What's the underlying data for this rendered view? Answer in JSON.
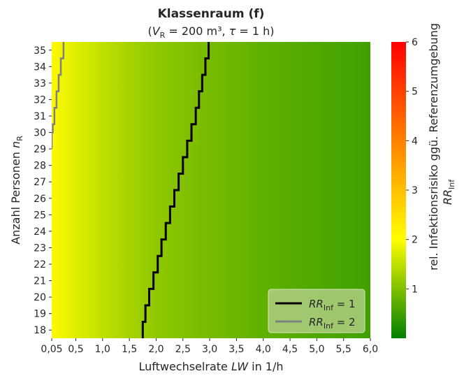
{
  "chart_data": {
    "type": "heatmap",
    "title": "Klassenraum (f)",
    "subtitle": {
      "open": "(",
      "v_sym": "V",
      "v_sub": "R",
      "v_val": " = 200 m³, ",
      "tau_sym": "τ",
      "tau_val": " = 1 h)"
    },
    "xlabel": {
      "prefix": "Luftwechselrate ",
      "symbol": "LW",
      "suffix": " in 1/h"
    },
    "ylabel": {
      "prefix": "Anzahl Personen ",
      "symbol": "n",
      "sub": "R"
    },
    "x_range": [
      0.05,
      6.0
    ],
    "y_range": [
      18,
      35
    ],
    "x_ticks": [
      {
        "value": 0.05,
        "label": "0,05"
      },
      {
        "value": 0.5,
        "label": "0,5"
      },
      {
        "value": 1.0,
        "label": "1,0"
      },
      {
        "value": 1.5,
        "label": "1,5"
      },
      {
        "value": 2.0,
        "label": "2,0"
      },
      {
        "value": 2.5,
        "label": "2,5"
      },
      {
        "value": 3.0,
        "label": "3,0"
      },
      {
        "value": 3.5,
        "label": "3,5"
      },
      {
        "value": 4.0,
        "label": "4,0"
      },
      {
        "value": 4.5,
        "label": "4,5"
      },
      {
        "value": 5.0,
        "label": "5,0"
      },
      {
        "value": 5.5,
        "label": "5,5"
      },
      {
        "value": 6.0,
        "label": "6,0"
      }
    ],
    "y_ticks": [
      18,
      19,
      20,
      21,
      22,
      23,
      24,
      25,
      26,
      27,
      28,
      29,
      30,
      31,
      32,
      33,
      34,
      35
    ],
    "colorbar": {
      "label_line1": "rel. Infektionsrisiko ggü. Referenzumgebung",
      "label_sym": "RR",
      "label_sub": "Inf",
      "range": [
        0,
        6
      ],
      "ticks": [
        1,
        2,
        3,
        4,
        5,
        6
      ],
      "stops": [
        {
          "value": 0.0,
          "color": "#008000"
        },
        {
          "value": 1.0,
          "color": "#80c000"
        },
        {
          "value": 2.0,
          "color": "#ffff00"
        },
        {
          "value": 4.0,
          "color": "#ff8000"
        },
        {
          "value": 6.0,
          "color": "#ff0000"
        }
      ]
    },
    "field": {
      "at_x": [
        0.05,
        0.5,
        1.0,
        1.5,
        2.0,
        3.0,
        4.0,
        5.0,
        6.0
      ],
      "rr_at_x": [
        2.1,
        1.75,
        1.5,
        1.3,
        1.12,
        0.92,
        0.75,
        0.62,
        0.5
      ]
    },
    "series": [
      {
        "name": "RR_Inf = 1",
        "legend_sym": "RR",
        "legend_sub": "Inf",
        "legend_val": " = 1",
        "color": "#000000",
        "points": [
          [
            1.75,
            18
          ],
          [
            1.8,
            19
          ],
          [
            1.87,
            20
          ],
          [
            1.95,
            21
          ],
          [
            2.03,
            22
          ],
          [
            2.1,
            23
          ],
          [
            2.18,
            24
          ],
          [
            2.26,
            25
          ],
          [
            2.34,
            26
          ],
          [
            2.42,
            27
          ],
          [
            2.5,
            28
          ],
          [
            2.58,
            29
          ],
          [
            2.66,
            30
          ],
          [
            2.74,
            31
          ],
          [
            2.8,
            32
          ],
          [
            2.86,
            33
          ],
          [
            2.92,
            34
          ],
          [
            2.98,
            35
          ]
        ]
      },
      {
        "name": "RR_Inf = 2",
        "legend_sym": "RR",
        "legend_sub": "Inf",
        "legend_val": " = 2",
        "color": "#808080",
        "points": [
          [
            0.05,
            29.5
          ],
          [
            0.07,
            30
          ],
          [
            0.1,
            31
          ],
          [
            0.14,
            32
          ],
          [
            0.18,
            33
          ],
          [
            0.22,
            34
          ],
          [
            0.27,
            35
          ]
        ]
      }
    ],
    "legend_position": "bottom-right",
    "grid": false
  }
}
